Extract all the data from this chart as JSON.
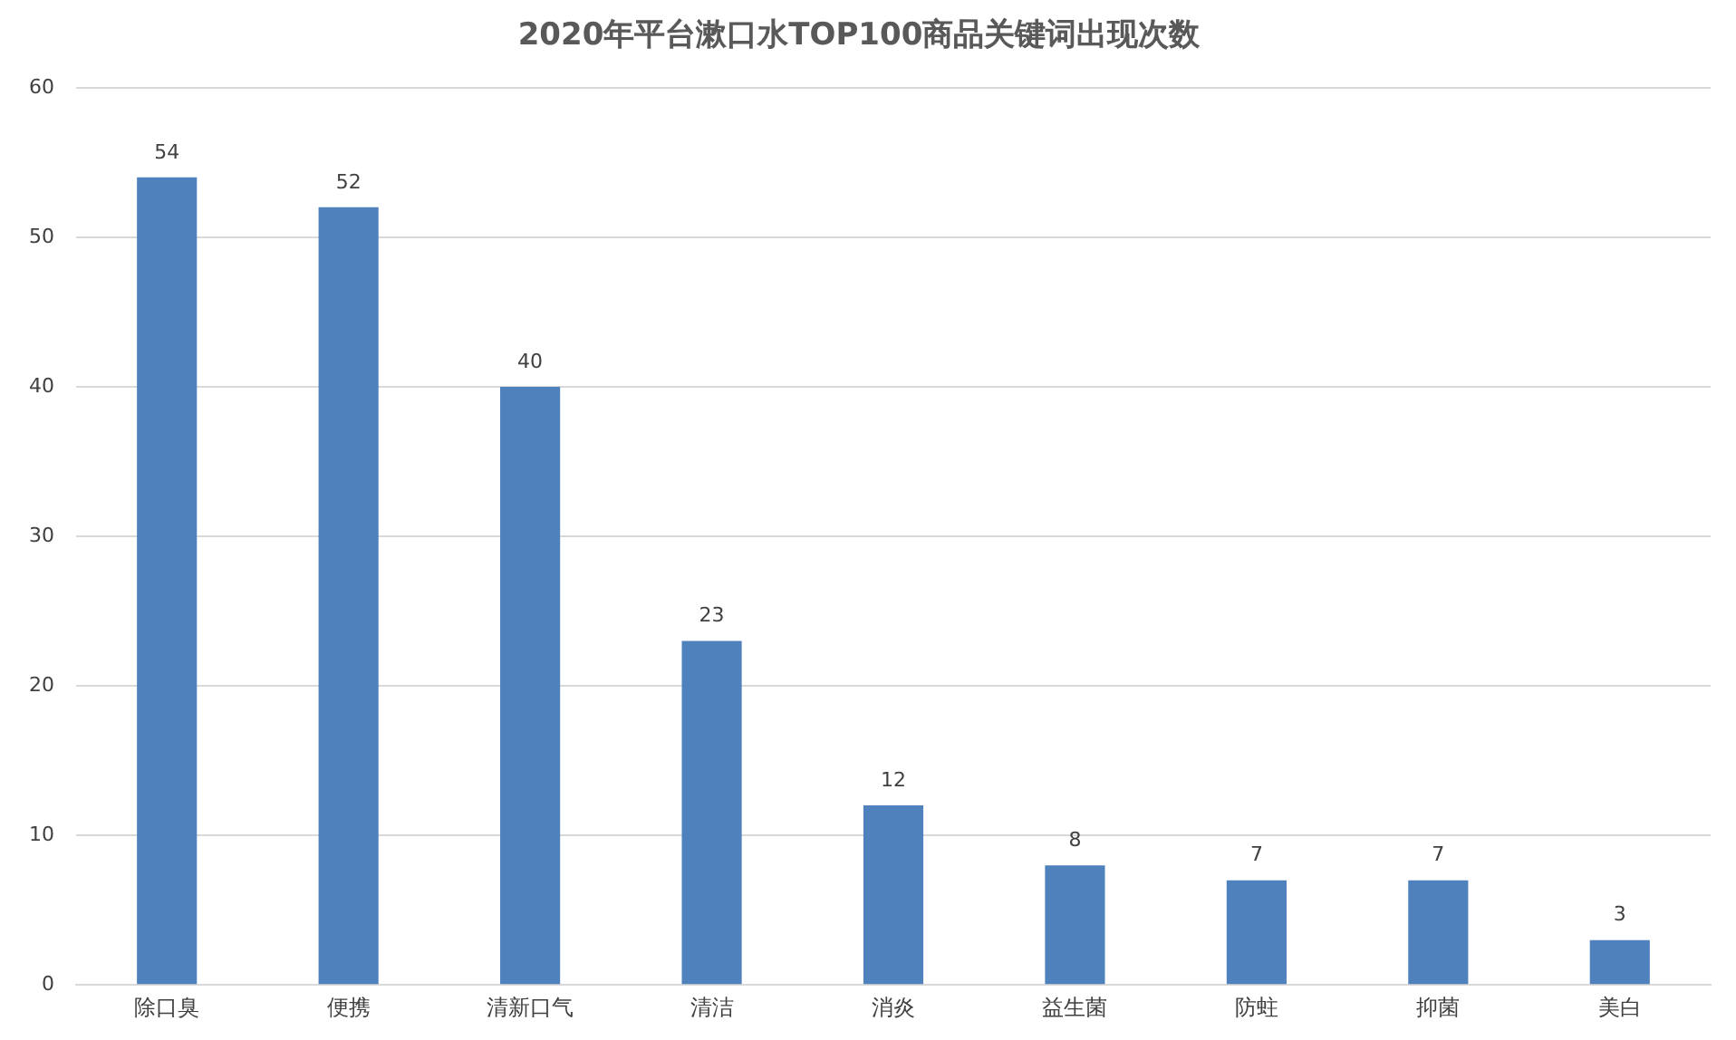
{
  "chart_data": {
    "type": "bar",
    "title": "2020年平台漱口水TOP100商品关键词出现次数",
    "categories": [
      "除口臭",
      "便携",
      "清新口气",
      "清洁",
      "消炎",
      "益生菌",
      "防蛀",
      "抑菌",
      "美白"
    ],
    "values": [
      54,
      52,
      40,
      23,
      12,
      8,
      7,
      7,
      3
    ],
    "color": "#4f81bd",
    "ylim": [
      0,
      60
    ],
    "yticks": [
      0,
      10,
      20,
      30,
      40,
      50,
      60
    ],
    "grid": "y",
    "data_labels": true
  }
}
